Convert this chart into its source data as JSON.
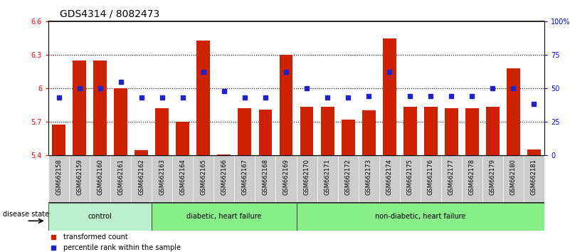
{
  "title": "GDS4314 / 8082473",
  "samples": [
    "GSM662158",
    "GSM662159",
    "GSM662160",
    "GSM662161",
    "GSM662162",
    "GSM662163",
    "GSM662164",
    "GSM662165",
    "GSM662166",
    "GSM662167",
    "GSM662168",
    "GSM662169",
    "GSM662170",
    "GSM662171",
    "GSM662172",
    "GSM662173",
    "GSM662174",
    "GSM662175",
    "GSM662176",
    "GSM662177",
    "GSM662178",
    "GSM662179",
    "GSM662180",
    "GSM662181"
  ],
  "bar_values": [
    5.67,
    6.25,
    6.25,
    6.0,
    5.44,
    5.82,
    5.7,
    6.43,
    5.405,
    5.82,
    5.81,
    6.3,
    5.83,
    5.83,
    5.72,
    5.8,
    6.45,
    5.83,
    5.83,
    5.82,
    5.82,
    5.83,
    6.18,
    5.45
  ],
  "dot_values": [
    43,
    50,
    50,
    55,
    43,
    43,
    43,
    62,
    48,
    43,
    43,
    62,
    50,
    43,
    43,
    44,
    62,
    44,
    44,
    44,
    44,
    50,
    50,
    38
  ],
  "bar_color": "#cc2200",
  "dot_color": "#2222cc",
  "ylim_left": [
    5.4,
    6.6
  ],
  "ylim_right": [
    0,
    100
  ],
  "yticks_left": [
    5.4,
    5.7,
    6.0,
    6.3,
    6.6
  ],
  "ytick_labels_left": [
    "5.4",
    "5.7",
    "6",
    "6.3",
    "6.6"
  ],
  "yticks_right": [
    0,
    25,
    50,
    75,
    100
  ],
  "ytick_labels_right": [
    "0",
    "25",
    "50",
    "75",
    "100%"
  ],
  "groups": [
    {
      "label": "control",
      "start": 0,
      "end": 4,
      "color": "#bbeecc"
    },
    {
      "label": "diabetic, heart failure",
      "start": 5,
      "end": 11,
      "color": "#88ee88"
    },
    {
      "label": "non-diabetic, heart failure",
      "start": 12,
      "end": 23,
      "color": "#88ee88"
    }
  ],
  "disease_state_label": "disease state",
  "legend_bar_label": "transformed count",
  "legend_dot_label": "percentile rank within the sample",
  "title_fontsize": 10,
  "tick_fontsize": 7,
  "label_fontsize": 8,
  "xtick_fontsize": 6,
  "sample_bg_color": "#cccccc",
  "group_border_color": "#222222"
}
